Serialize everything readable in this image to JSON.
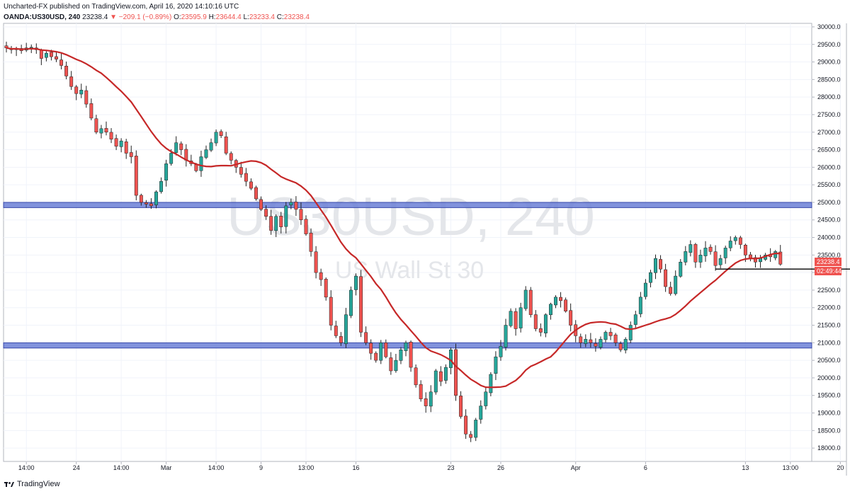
{
  "header": {
    "line1": "Uncharted-FX published on TradingView.com, April 16, 2020 14:10:16 UTC",
    "symbol": "OANDA:US30USD, 240",
    "last": "23238.4",
    "change": "−209.1 (−0.89%)",
    "o_label": "O:",
    "o": "23595.9",
    "h_label": "H:",
    "h": "23644.4",
    "l_label": "L:",
    "l": "23233.4",
    "c_label": "C:",
    "c": "23238.4"
  },
  "watermark": {
    "symbol": "US30USD, 240",
    "name": "US Wall St 30"
  },
  "price_tags": {
    "last": "23238.4",
    "countdown": "02:49:44"
  },
  "footer": {
    "brand": "TradingView"
  },
  "colors": {
    "up": "#26a69a",
    "down": "#ef5350",
    "ma": "#c62828",
    "zone": "#6b7fd6",
    "zone_border": "#3949ab"
  },
  "chart_data": {
    "type": "candlestick",
    "title": "OANDA:US30USD, 240",
    "ylim": [
      17700,
      30100
    ],
    "y_ticks": [
      18000,
      18500,
      19000,
      19500,
      20000,
      20500,
      21000,
      21500,
      22000,
      22500,
      23000,
      23500,
      24000,
      24500,
      25000,
      25500,
      26000,
      26500,
      27000,
      27500,
      28000,
      28500,
      29000,
      29500,
      30000
    ],
    "y_tick_labels": [
      "18000.0",
      "18500.0",
      "19000.0",
      "19500.0",
      "20000.0",
      "20500.0",
      "21000.0",
      "21500.0",
      "22000.0",
      "22500.0",
      "23000.0",
      "23500.0",
      "24000.0",
      "24500.0",
      "25000.0",
      "25500.0",
      "26000.0",
      "26500.0",
      "27000.0",
      "27500.0",
      "28000.0",
      "28500.0",
      "29000.0",
      "29500.0",
      "30000.0"
    ],
    "x_ticks": [
      {
        "label": "14:00",
        "bar": 4
      },
      {
        "label": "24",
        "bar": 14
      },
      {
        "label": "14:00",
        "bar": 23
      },
      {
        "label": "Mar",
        "bar": 32
      },
      {
        "label": "14:00",
        "bar": 42
      },
      {
        "label": "9",
        "bar": 51
      },
      {
        "label": "13:00",
        "bar": 60
      },
      {
        "label": "16",
        "bar": 70
      },
      {
        "label": "23",
        "bar": 89
      },
      {
        "label": "26",
        "bar": 99
      },
      {
        "label": "Apr",
        "bar": 114
      },
      {
        "label": "6",
        "bar": 128
      },
      {
        "label": "13",
        "bar": 148
      },
      {
        "label": "13:00",
        "bar": 157
      },
      {
        "label": "20",
        "bar": 167
      }
    ],
    "zones": [
      {
        "from": 24850,
        "to": 25000
      },
      {
        "from": 20850,
        "to": 21000
      }
    ],
    "support_line": {
      "value": 23100,
      "from_bar": 142,
      "to_bar": 170
    },
    "ma_period": 20,
    "close": [
      29400,
      29350,
      29380,
      29320,
      29400,
      29420,
      29350,
      29100,
      29250,
      29150,
      29080,
      28900,
      28600,
      28300,
      28100,
      28200,
      27800,
      27400,
      27000,
      27100,
      27000,
      26800,
      26600,
      26750,
      26400,
      26300,
      25200,
      25000,
      24950,
      24900,
      25300,
      25600,
      26100,
      26400,
      26700,
      26500,
      26200,
      26100,
      25900,
      26300,
      26500,
      26700,
      27000,
      26900,
      26400,
      26200,
      26000,
      25800,
      25600,
      25400,
      25100,
      24800,
      24600,
      24200,
      24600,
      24300,
      24900,
      25000,
      24800,
      24500,
      24100,
      23600,
      23000,
      22800,
      22300,
      21500,
      21200,
      21000,
      21800,
      22500,
      22900,
      21300,
      21000,
      20700,
      20500,
      21000,
      20600,
      20200,
      20500,
      20800,
      21000,
      20300,
      19800,
      19400,
      19200,
      19600,
      20200,
      19900,
      20300,
      20800,
      19500,
      18900,
      18400,
      18300,
      18800,
      19200,
      19600,
      20100,
      20600,
      20900,
      21500,
      21900,
      21400,
      22000,
      22500,
      21800,
      21400,
      21300,
      21800,
      22100,
      22300,
      22200,
      21900,
      21500,
      21200,
      21000,
      21100,
      21000,
      20900,
      21100,
      21300,
      21200,
      21000,
      20800,
      21100,
      21500,
      21800,
      22300,
      22700,
      23000,
      23400,
      23100,
      22600,
      22400,
      22900,
      23300,
      23600,
      23800,
      23300,
      23500,
      23700,
      23600,
      23200,
      23400,
      23700,
      23900,
      24000,
      23800,
      23500,
      23400,
      23300,
      23400,
      23500,
      23450,
      23600,
      23238
    ]
  }
}
